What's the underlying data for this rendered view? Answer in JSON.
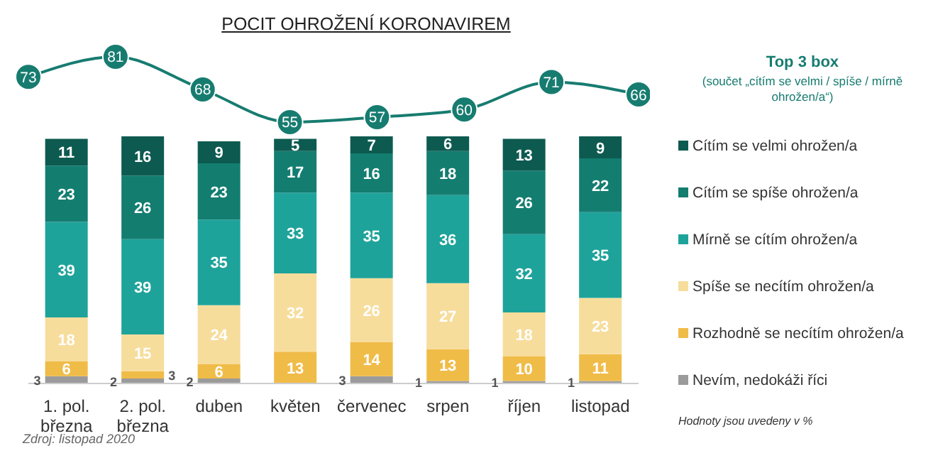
{
  "chart_data": [
    {
      "type": "line",
      "title": "POCIT OHROŽENÍ KORONAVIREM",
      "categories": [
        null,
        null,
        null,
        null,
        null,
        null,
        null,
        null
      ],
      "data_labels": true,
      "legend": "right",
      "marker": "circle",
      "series": [
        {
          "name": "Top 3 box",
          "color": "#177c70",
          "values": [
            73,
            81,
            68,
            55,
            57,
            60,
            71,
            66
          ]
        }
      ],
      "annotations": [
        "(součet „cítím se velmi / spíše / mírně ohrožen/a“)"
      ]
    },
    {
      "type": "bar",
      "categories": [
        "1. pol. března",
        "2. pol. března",
        "duben",
        "květen",
        "červenec",
        "srpen",
        "říjen",
        "listopad"
      ],
      "stacked": true,
      "data_labels": true,
      "legend": "right",
      "series": [
        {
          "name": "Nevím, nedokáži říci",
          "color": "#9b9b9b",
          "values": [
            3,
            2,
            2,
            null,
            3,
            1,
            1,
            1
          ]
        },
        {
          "name": "Rozhodně se necítím ohrožen/a",
          "color": "#f0bc48",
          "values": [
            6,
            3,
            6,
            13,
            14,
            13,
            10,
            11
          ]
        },
        {
          "name": "Spíše se necítím ohrožen/a",
          "color": "#f7dd9c",
          "values": [
            18,
            15,
            24,
            32,
            26,
            27,
            18,
            23
          ]
        },
        {
          "name": "Mírně se cítím ohrožen/a",
          "color": "#1ea39b",
          "values": [
            39,
            39,
            35,
            33,
            35,
            36,
            32,
            35
          ]
        },
        {
          "name": "Cítím se spíše ohrožen/a",
          "color": "#137d70",
          "values": [
            23,
            26,
            23,
            17,
            16,
            18,
            26,
            22
          ]
        },
        {
          "name": "Cítím se velmi ohrožen/a",
          "color": "#0d5a50",
          "values": [
            11,
            16,
            9,
            5,
            7,
            6,
            13,
            9
          ]
        }
      ],
      "annotations": [
        "Hodnoty jsou uvedeny v %",
        "Zdroj: listopad 2020"
      ]
    }
  ]
}
